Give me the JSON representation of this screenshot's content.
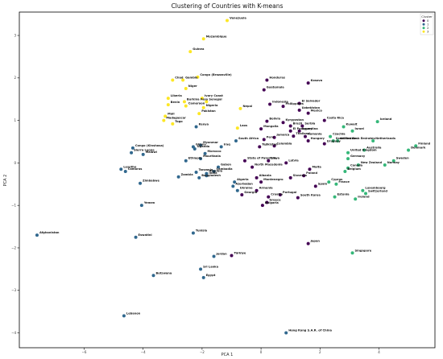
{
  "chart_data": {
    "type": "scatter",
    "title": "Clustering of Countries with K-means",
    "xlabel": "PCA 1",
    "ylabel": "PCA 2",
    "xlim": [
      -8.2,
      5.9
    ],
    "ylim": [
      -4.35,
      3.55
    ],
    "xticks": [
      -6,
      -4,
      -2,
      0,
      2,
      4
    ],
    "yticks": [
      -4,
      -3,
      -2,
      -1,
      0,
      1,
      2,
      3
    ],
    "grid": false,
    "legend": {
      "title": "Cluster",
      "placement": "top-right",
      "entries": [
        "0",
        "1",
        "2",
        "3"
      ]
    },
    "colors": {
      "0": "#440154",
      "1": "#31688e",
      "2": "#35b779",
      "3": "#fde725"
    },
    "points": [
      {
        "name": "Venezuela",
        "x": -1.15,
        "y": 3.35,
        "cluster": 3
      },
      {
        "name": "Mozambique",
        "x": -1.95,
        "y": 2.92,
        "cluster": 3
      },
      {
        "name": "Guinea",
        "x": -2.4,
        "y": 2.62,
        "cluster": 3
      },
      {
        "name": "Congo (Brazzaville)",
        "x": -2.15,
        "y": 2.02,
        "cluster": 3
      },
      {
        "name": "Chad",
        "x": -3.0,
        "y": 1.95,
        "cluster": 3
      },
      {
        "name": "Gambia",
        "x": -2.65,
        "y": 1.95,
        "cluster": 3
      },
      {
        "name": "Niger",
        "x": -2.55,
        "y": 1.75,
        "cluster": 3
      },
      {
        "name": "Liberia",
        "x": -3.15,
        "y": 1.52,
        "cluster": 3
      },
      {
        "name": "Ivory Coast",
        "x": -2.0,
        "y": 1.52,
        "cluster": 3
      },
      {
        "name": "Burkina Faso",
        "x": -2.6,
        "y": 1.44,
        "cluster": 3
      },
      {
        "name": "Senegal",
        "x": -1.85,
        "y": 1.44,
        "cluster": 3
      },
      {
        "name": "Benin",
        "x": -3.15,
        "y": 1.37,
        "cluster": 3
      },
      {
        "name": "Cameroon",
        "x": -2.55,
        "y": 1.34,
        "cluster": 3
      },
      {
        "name": "Nigeria",
        "x": -1.95,
        "y": 1.3,
        "cluster": 3
      },
      {
        "name": "Nepal",
        "x": -0.7,
        "y": 1.28,
        "cluster": 3
      },
      {
        "name": "Pakistan",
        "x": -2.1,
        "y": 1.16,
        "cluster": 3
      },
      {
        "name": "Mali",
        "x": -3.25,
        "y": 1.1,
        "cluster": 3
      },
      {
        "name": "Madagascar",
        "x": -3.3,
        "y": 1.0,
        "cluster": 3
      },
      {
        "name": "Togo",
        "x": -3.0,
        "y": 0.92,
        "cluster": 3
      },
      {
        "name": "Laos",
        "x": -0.8,
        "y": 0.82,
        "cluster": 3
      },
      {
        "name": "Kenya",
        "x": -2.2,
        "y": 0.85,
        "cluster": 1
      },
      {
        "name": "Honduras",
        "x": 0.2,
        "y": 1.95,
        "cluster": 0
      },
      {
        "name": "Kosovo",
        "x": 1.6,
        "y": 1.88,
        "cluster": 0
      },
      {
        "name": "Guatemala",
        "x": 0.1,
        "y": 1.72,
        "cluster": 0
      },
      {
        "name": "Indonesia",
        "x": 0.3,
        "y": 1.38,
        "cluster": 0
      },
      {
        "name": "Philippines",
        "x": 0.75,
        "y": 1.33,
        "cluster": 0
      },
      {
        "name": "El Salvador",
        "x": 1.3,
        "y": 1.4,
        "cluster": 0
      },
      {
        "name": "Uzbekistan",
        "x": 1.3,
        "y": 1.24,
        "cluster": 0
      },
      {
        "name": "Mexico",
        "x": 1.6,
        "y": 1.17,
        "cluster": 0
      },
      {
        "name": "Costa Rica",
        "x": 2.15,
        "y": 1.0,
        "cluster": 0
      },
      {
        "name": "Bolivia",
        "x": 0.2,
        "y": 0.98,
        "cluster": 0
      },
      {
        "name": "Kyrgyzstan",
        "x": 0.75,
        "y": 0.95,
        "cluster": 0
      },
      {
        "name": "Brazil",
        "x": 1.0,
        "y": 0.87,
        "cluster": 0
      },
      {
        "name": "Serbia",
        "x": 1.4,
        "y": 0.87,
        "cluster": 0
      },
      {
        "name": "Mongolia",
        "x": 0.0,
        "y": 0.8,
        "cluster": 0
      },
      {
        "name": "El Paraguay",
        "x": 1.0,
        "y": 0.75,
        "cluster": 0
      },
      {
        "name": "Argentina",
        "x": 1.3,
        "y": 0.75,
        "cluster": 0
      },
      {
        "name": "Jamaica",
        "x": 0.45,
        "y": 0.6,
        "cluster": 0
      },
      {
        "name": "Peru",
        "x": 0.1,
        "y": 0.55,
        "cluster": 0
      },
      {
        "name": "Thailand",
        "x": 1.1,
        "y": 0.63,
        "cluster": 0
      },
      {
        "name": "Romania",
        "x": 1.5,
        "y": 0.62,
        "cluster": 0
      },
      {
        "name": "Hungary",
        "x": 1.6,
        "y": 0.52,
        "cluster": 0
      },
      {
        "name": "Tajikistan",
        "x": -0.05,
        "y": 0.38,
        "cluster": 0
      },
      {
        "name": "Colombia",
        "x": 0.45,
        "y": 0.4,
        "cluster": 0
      },
      {
        "name": "South Africa",
        "x": -0.85,
        "y": 0.52,
        "cluster": 1
      },
      {
        "name": "Iraq",
        "x": -1.35,
        "y": 0.38,
        "cluster": 1
      },
      {
        "name": "Myanmar",
        "x": -2.05,
        "y": 0.42,
        "cluster": 1
      },
      {
        "name": "Ghana",
        "x": -2.3,
        "y": 0.38,
        "cluster": 1
      },
      {
        "name": "Uganda",
        "x": -2.25,
        "y": 0.33,
        "cluster": 1
      },
      {
        "name": "Morocco",
        "x": -1.9,
        "y": 0.22,
        "cluster": 1
      },
      {
        "name": "Mauritania",
        "x": -2.05,
        "y": 0.1,
        "cluster": 1
      },
      {
        "name": "Ethiopia",
        "x": -2.55,
        "y": 0.05,
        "cluster": 1
      },
      {
        "name": "Congo (Kinshasa)",
        "x": -4.35,
        "y": 0.35,
        "cluster": 1
      },
      {
        "name": "Sierra Leone",
        "x": -4.4,
        "y": 0.24,
        "cluster": 1
      },
      {
        "name": "Malawi",
        "x": -4.0,
        "y": 0.2,
        "cluster": 1
      },
      {
        "name": "Lesotho",
        "x": -4.75,
        "y": -0.15,
        "cluster": 1
      },
      {
        "name": "Comoros",
        "x": -4.6,
        "y": -0.2,
        "cluster": 1
      },
      {
        "name": "Zimbabwe",
        "x": -4.1,
        "y": -0.48,
        "cluster": 1
      },
      {
        "name": "Yemen",
        "x": -4.05,
        "y": -1.0,
        "cluster": 1
      },
      {
        "name": "Zambia",
        "x": -2.8,
        "y": -0.33,
        "cluster": 1
      },
      {
        "name": "Tanzania",
        "x": -2.2,
        "y": -0.22,
        "cluster": 1
      },
      {
        "name": "Bangladesh",
        "x": -2.1,
        "y": -0.35,
        "cluster": 1
      },
      {
        "name": "India",
        "x": -1.85,
        "y": -0.3,
        "cluster": 1
      },
      {
        "name": "Gabon",
        "x": -1.45,
        "y": -0.1,
        "cluster": 1
      },
      {
        "name": "Cambodia",
        "x": -1.6,
        "y": -0.2,
        "cluster": 1
      },
      {
        "name": "Namibia",
        "x": -1.85,
        "y": -0.25,
        "cluster": 1
      },
      {
        "name": "State of Palestine",
        "x": -0.55,
        "y": 0.05,
        "cluster": 0
      },
      {
        "name": "North Macedonia",
        "x": -0.3,
        "y": -0.1,
        "cluster": 0
      },
      {
        "name": "Algeria",
        "x": -0.9,
        "y": -0.45,
        "cluster": 1
      },
      {
        "name": "Azerbaijan",
        "x": -0.95,
        "y": -0.55,
        "cluster": 1
      },
      {
        "name": "Ukraine",
        "x": -0.8,
        "y": -0.65,
        "cluster": 1
      },
      {
        "name": "Georgia",
        "x": -0.65,
        "y": -0.75,
        "cluster": 0
      },
      {
        "name": "Armenia",
        "x": -0.15,
        "y": -0.65,
        "cluster": 0
      },
      {
        "name": "Croatia",
        "x": 0.25,
        "y": -0.8,
        "cluster": 0
      },
      {
        "name": "Portugal",
        "x": 0.65,
        "y": -0.75,
        "cluster": 0
      },
      {
        "name": "Bulgaria",
        "x": 0.05,
        "y": -1.0,
        "cluster": 0
      },
      {
        "name": "Greece",
        "x": 0.2,
        "y": -0.93,
        "cluster": 0
      },
      {
        "name": "South Korea",
        "x": 1.25,
        "y": -0.82,
        "cluster": 0
      },
      {
        "name": "Montenegro",
        "x": 0.0,
        "y": -0.45,
        "cluster": 0
      },
      {
        "name": "Albania",
        "x": -0.15,
        "y": -0.35,
        "cluster": 0
      },
      {
        "name": "Libya",
        "x": 0.25,
        "y": 0.05,
        "cluster": 0
      },
      {
        "name": "Latvia",
        "x": 0.85,
        "y": 0.0,
        "cluster": 0
      },
      {
        "name": "Malta",
        "x": 1.65,
        "y": -0.15,
        "cluster": 0
      },
      {
        "name": "Poland",
        "x": 1.45,
        "y": -0.3,
        "cluster": 0
      },
      {
        "name": "Slovenia",
        "x": 1.0,
        "y": -0.35,
        "cluster": 0
      },
      {
        "name": "Spain",
        "x": 1.85,
        "y": -0.55,
        "cluster": 0
      },
      {
        "name": "Japan",
        "x": 1.6,
        "y": -1.9,
        "cluster": 0
      },
      {
        "name": "Uruguay",
        "x": 2.15,
        "y": 0.45,
        "cluster": 0
      },
      {
        "name": "Kuwait",
        "x": 2.8,
        "y": 0.85,
        "cluster": 2
      },
      {
        "name": "Israel",
        "x": 3.1,
        "y": 0.75,
        "cluster": 2
      },
      {
        "name": "Iceland",
        "x": 3.95,
        "y": 0.97,
        "cluster": 2
      },
      {
        "name": "Czechia",
        "x": 2.35,
        "y": 0.62,
        "cluster": 2
      },
      {
        "name": "Saudi Arabia",
        "x": 2.45,
        "y": 0.52,
        "cluster": 2
      },
      {
        "name": "United Arab Emirates",
        "x": 2.6,
        "y": 0.52,
        "cluster": 2
      },
      {
        "name": "Netherlands",
        "x": 3.8,
        "y": 0.52,
        "cluster": 2
      },
      {
        "name": "Finland",
        "x": 5.25,
        "y": 0.4,
        "cluster": 2
      },
      {
        "name": "Denmark",
        "x": 5.0,
        "y": 0.3,
        "cluster": 2
      },
      {
        "name": "Australia",
        "x": 3.5,
        "y": 0.3,
        "cluster": 2
      },
      {
        "name": "United Kingdom",
        "x": 2.95,
        "y": 0.24,
        "cluster": 2
      },
      {
        "name": "Germany",
        "x": 2.95,
        "y": 0.1,
        "cluster": 2
      },
      {
        "name": "Sweden",
        "x": 4.5,
        "y": 0.05,
        "cluster": 2
      },
      {
        "name": "Norway",
        "x": 4.2,
        "y": -0.05,
        "cluster": 2
      },
      {
        "name": "New Zealand",
        "x": 3.3,
        "y": -0.05,
        "cluster": 2
      },
      {
        "name": "Canada",
        "x": 2.95,
        "y": -0.12,
        "cluster": 2
      },
      {
        "name": "Belgium",
        "x": 2.85,
        "y": -0.2,
        "cluster": 2
      },
      {
        "name": "France",
        "x": 2.55,
        "y": -0.5,
        "cluster": 2
      },
      {
        "name": "Cyprus",
        "x": 2.3,
        "y": -0.45,
        "cluster": 2
      },
      {
        "name": "Luxembourg",
        "x": 3.45,
        "y": -0.65,
        "cluster": 2
      },
      {
        "name": "Switzerland",
        "x": 3.55,
        "y": -0.72,
        "cluster": 2
      },
      {
        "name": "Estonia",
        "x": 2.5,
        "y": -0.8,
        "cluster": 2
      },
      {
        "name": "Ireland",
        "x": 3.2,
        "y": -0.85,
        "cluster": 2
      },
      {
        "name": "Singapore",
        "x": 3.1,
        "y": -2.12,
        "cluster": 2
      },
      {
        "name": "Afghanistan",
        "x": -7.6,
        "y": -1.7,
        "cluster": 1
      },
      {
        "name": "Eswatini",
        "x": -4.25,
        "y": -1.75,
        "cluster": 1
      },
      {
        "name": "Tunisia",
        "x": -2.3,
        "y": -1.65,
        "cluster": 1
      },
      {
        "name": "Jordan",
        "x": -1.6,
        "y": -2.2,
        "cluster": 1
      },
      {
        "name": "Türkiye",
        "x": -1.0,
        "y": -2.18,
        "cluster": 0
      },
      {
        "name": "Sri Lanka",
        "x": -2.05,
        "y": -2.5,
        "cluster": 1
      },
      {
        "name": "Botswana",
        "x": -3.65,
        "y": -2.65,
        "cluster": 1
      },
      {
        "name": "Egypt",
        "x": -1.95,
        "y": -2.7,
        "cluster": 1
      },
      {
        "name": "Lebanon",
        "x": -4.65,
        "y": -3.6,
        "cluster": 1
      },
      {
        "name": "Hong Kong S.A.R. of China",
        "x": 0.85,
        "y": -4.0,
        "cluster": 1
      }
    ]
  }
}
